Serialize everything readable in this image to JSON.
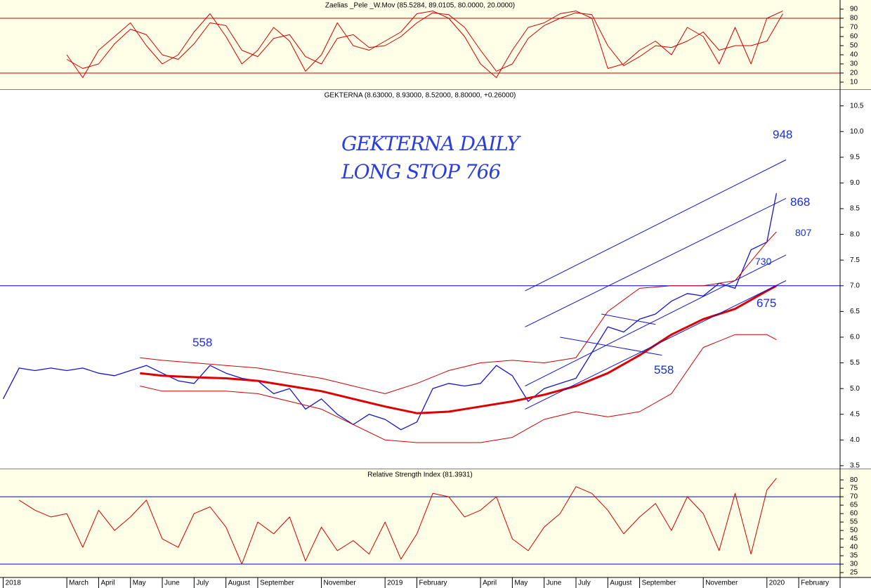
{
  "chart_data": [
    {
      "type": "line",
      "title": "Zaelias _Pele _W.Mov (85.5284, 89.0105, 80.0000, 20.0000)",
      "background": "#ffffe8",
      "xlim": [
        -0.1,
        26.3
      ],
      "ylim": [
        1.5,
        100
      ],
      "yticks": [
        10,
        20,
        30,
        40,
        50,
        60,
        70,
        80,
        90
      ],
      "hlines": [
        80,
        20
      ],
      "hline_color": "#cc0000",
      "series": [
        {
          "color": "#cc0000",
          "x": [
            2,
            2.5,
            3,
            3.5,
            4,
            4.5,
            5,
            5.5,
            6,
            6.5,
            7,
            7.5,
            8,
            8.5,
            9,
            9.5,
            10,
            10.5,
            11,
            11.5,
            12,
            12.5,
            13,
            13.5,
            14,
            14.5,
            15,
            15.5,
            16,
            16.5,
            17,
            17.5,
            18,
            18.5,
            19,
            19.5,
            20,
            20.5,
            21,
            21.5,
            22,
            22.5,
            23,
            23.5,
            24,
            24.5
          ],
          "values": [
            40,
            15,
            45,
            60,
            75,
            50,
            30,
            40,
            65,
            85,
            60,
            30,
            45,
            70,
            55,
            22,
            40,
            75,
            50,
            45,
            55,
            65,
            85,
            88,
            80,
            60,
            30,
            15,
            45,
            70,
            75,
            85,
            88,
            80,
            25,
            30,
            45,
            55,
            40,
            70,
            60,
            30,
            70,
            30,
            80,
            88
          ]
        },
        {
          "color": "#cc0000",
          "x": [
            2,
            2.5,
            3,
            3.5,
            4,
            4.5,
            5,
            5.5,
            6,
            6.5,
            7,
            7.5,
            8,
            8.5,
            9,
            9.5,
            10,
            10.5,
            11,
            11.5,
            12,
            12.5,
            13,
            13.5,
            14,
            14.5,
            15,
            15.5,
            16,
            16.5,
            17,
            17.5,
            18,
            18.5,
            19,
            19.5,
            20,
            20.5,
            21,
            21.5,
            22,
            22.5,
            23,
            23.5,
            24,
            24.5
          ],
          "values": [
            35,
            25,
            30,
            52,
            68,
            62,
            40,
            35,
            52,
            75,
            72,
            45,
            38,
            58,
            62,
            38,
            30,
            58,
            62,
            48,
            50,
            60,
            75,
            86,
            84,
            70,
            45,
            22,
            30,
            58,
            72,
            80,
            86,
            84,
            50,
            28,
            38,
            50,
            48,
            55,
            65,
            45,
            50,
            50,
            55,
            85
          ]
        }
      ]
    },
    {
      "type": "line",
      "title": "GEKTERNA (8.63000, 8.93000, 8.52000, 8.80000, +0.26000)",
      "background": "#ffffff",
      "xlim": [
        -0.1,
        26.3
      ],
      "ylim": [
        3.43,
        10.81
      ],
      "yticks": [
        3.5,
        {
          "value": 4,
          "label": "4.0"
        },
        4.5,
        {
          "value": 5,
          "label": "5.0"
        },
        5.5,
        {
          "value": 6,
          "label": "6.0"
        },
        6.5,
        {
          "value": 7,
          "label": "7.0"
        },
        7.5,
        {
          "value": 8,
          "label": "8.0"
        },
        8.5,
        {
          "value": 9,
          "label": "9.0"
        },
        9.5,
        {
          "value": 10,
          "label": "10.0"
        },
        10.5
      ],
      "hlines": [
        7
      ],
      "hline_color": "#0000cc",
      "notes": [
        "GEKTERNA DAILY",
        "LONG STOP 766"
      ],
      "annotations": [
        "558",
        "948",
        "868",
        "807",
        "730",
        "675",
        "558"
      ],
      "series": [
        {
          "color": "#1515c8",
          "width": 1.3,
          "x": [
            0,
            0.5,
            1,
            1.5,
            2,
            2.5,
            3,
            3.5,
            4,
            4.5,
            5,
            5.5,
            6,
            6.5,
            7,
            7.5,
            8,
            8.5,
            9,
            9.5,
            10,
            10.5,
            11,
            11.5,
            12,
            12.5,
            13,
            13.5,
            14,
            14.5,
            15,
            15.5,
            16,
            16.5,
            17,
            17.5,
            18,
            18.5,
            19,
            19.5,
            20,
            20.5,
            21,
            21.5,
            22,
            22.5,
            23,
            23.5,
            24,
            24.3
          ],
          "values": [
            4.8,
            5.4,
            5.35,
            5.4,
            5.35,
            5.4,
            5.3,
            5.25,
            5.35,
            5.45,
            5.3,
            5.15,
            5.1,
            5.45,
            5.3,
            5.2,
            5.15,
            4.9,
            5.0,
            4.6,
            4.8,
            4.5,
            4.3,
            4.5,
            4.4,
            4.2,
            4.35,
            5.0,
            5.1,
            5.05,
            5.1,
            5.45,
            5.25,
            4.75,
            5.0,
            5.1,
            5.2,
            5.7,
            6.2,
            6.1,
            6.35,
            6.45,
            6.7,
            6.85,
            6.8,
            7.05,
            6.95,
            7.7,
            7.85,
            8.8
          ]
        },
        {
          "color": "#dd0000",
          "width": 3,
          "x": [
            4.3,
            5,
            6,
            7,
            8,
            9,
            10,
            11,
            12,
            13,
            14,
            15,
            16,
            17,
            18,
            19,
            20,
            21,
            22,
            23,
            24,
            24.3
          ],
          "values": [
            5.3,
            5.25,
            5.22,
            5.2,
            5.15,
            5.05,
            4.95,
            4.8,
            4.65,
            4.52,
            4.55,
            4.65,
            4.75,
            4.88,
            5.05,
            5.3,
            5.65,
            6.05,
            6.35,
            6.55,
            6.9,
            7.0
          ]
        },
        {
          "color": "#cc0000",
          "width": 1,
          "x": [
            4.3,
            5,
            6,
            7,
            8,
            9,
            10,
            11,
            12,
            13,
            14,
            15,
            16,
            17,
            18,
            19,
            20,
            21,
            22,
            23,
            24,
            24.3
          ],
          "values": [
            5.6,
            5.55,
            5.5,
            5.45,
            5.4,
            5.3,
            5.2,
            5.05,
            4.9,
            5.1,
            5.35,
            5.5,
            5.55,
            5.5,
            5.6,
            6.5,
            6.95,
            7.0,
            7.0,
            7.1,
            7.85,
            8.05
          ]
        },
        {
          "color": "#cc0000",
          "width": 1,
          "x": [
            4.3,
            5,
            6,
            7,
            8,
            9,
            10,
            11,
            12,
            13,
            14,
            15,
            16,
            17,
            18,
            19,
            20,
            21,
            22,
            23,
            24,
            24.3
          ],
          "values": [
            5.05,
            4.95,
            4.95,
            4.95,
            4.9,
            4.75,
            4.6,
            4.3,
            4.0,
            3.95,
            3.95,
            3.95,
            4.05,
            4.4,
            4.55,
            4.45,
            4.55,
            4.9,
            5.8,
            6.05,
            6.05,
            5.95
          ]
        },
        {
          "color": "#1515c8",
          "width": 1,
          "x": [
            16.4,
            24.6
          ],
          "values": [
            6.9,
            9.45
          ]
        },
        {
          "color": "#1515c8",
          "width": 1,
          "x": [
            16.4,
            24.6
          ],
          "values": [
            6.2,
            8.7
          ]
        },
        {
          "color": "#1515c8",
          "width": 1,
          "x": [
            16.4,
            24.6
          ],
          "values": [
            5.05,
            7.6
          ]
        },
        {
          "color": "#1515c8",
          "width": 1,
          "x": [
            16.4,
            24.6
          ],
          "values": [
            4.6,
            7.1
          ]
        },
        {
          "color": "#1515c8",
          "width": 1,
          "x": [
            17.5,
            20.7
          ],
          "values": [
            6.0,
            5.65
          ]
        },
        {
          "color": "#1515c8",
          "width": 1,
          "x": [
            18.8,
            20.5
          ],
          "values": [
            6.45,
            6.25
          ]
        }
      ]
    },
    {
      "type": "line",
      "title": "Relative Strength Index (81.3931)",
      "background": "#ffffe8",
      "xlim": [
        -0.1,
        26.3
      ],
      "ylim": [
        22.1,
        86.3
      ],
      "yticks": [
        25,
        30,
        35,
        40,
        45,
        50,
        55,
        60,
        65,
        70,
        75,
        80
      ],
      "hlines": [
        70,
        30
      ],
      "hline_color": "#0000cc",
      "xticks": [
        {
          "value": 0,
          "label": "2018"
        },
        {
          "value": 2,
          "label": "March"
        },
        {
          "value": 3,
          "label": "April"
        },
        {
          "value": 4,
          "label": "May"
        },
        {
          "value": 5,
          "label": "June"
        },
        {
          "value": 6,
          "label": "July"
        },
        {
          "value": 7,
          "label": "August"
        },
        {
          "value": 8,
          "label": "September"
        },
        {
          "value": 10,
          "label": "November"
        },
        {
          "value": 12,
          "label": "2019"
        },
        {
          "value": 13,
          "label": "February"
        },
        {
          "value": 15,
          "label": "April"
        },
        {
          "value": 16,
          "label": "May"
        },
        {
          "value": 17,
          "label": "June"
        },
        {
          "value": 18,
          "label": "July"
        },
        {
          "value": 19,
          "label": "August"
        },
        {
          "value": 20,
          "label": "September"
        },
        {
          "value": 22,
          "label": "November"
        },
        {
          "value": 24,
          "label": "2020"
        },
        {
          "value": 25,
          "label": "February"
        }
      ],
      "series": [
        {
          "color": "#cc0000",
          "width": 1,
          "x": [
            0.5,
            1,
            1.5,
            2,
            2.5,
            3,
            3.5,
            4,
            4.5,
            5,
            5.5,
            6,
            6.5,
            7,
            7.5,
            8,
            8.5,
            9,
            9.5,
            10,
            10.5,
            11,
            11.5,
            12,
            12.5,
            13,
            13.5,
            14,
            14.5,
            15,
            15.5,
            16,
            16.5,
            17,
            17.5,
            18,
            18.5,
            19,
            19.5,
            20,
            20.5,
            21,
            21.5,
            22,
            22.5,
            23,
            23.5,
            24,
            24.3
          ],
          "values": [
            68,
            62,
            58,
            60,
            40,
            62,
            50,
            58,
            68,
            45,
            40,
            60,
            64,
            52,
            30,
            55,
            48,
            58,
            32,
            52,
            38,
            44,
            36,
            55,
            33,
            48,
            72,
            70,
            58,
            62,
            70,
            45,
            38,
            52,
            60,
            76,
            72,
            62,
            48,
            58,
            66,
            50,
            70,
            60,
            38,
            72,
            36,
            74,
            81
          ]
        }
      ]
    }
  ]
}
